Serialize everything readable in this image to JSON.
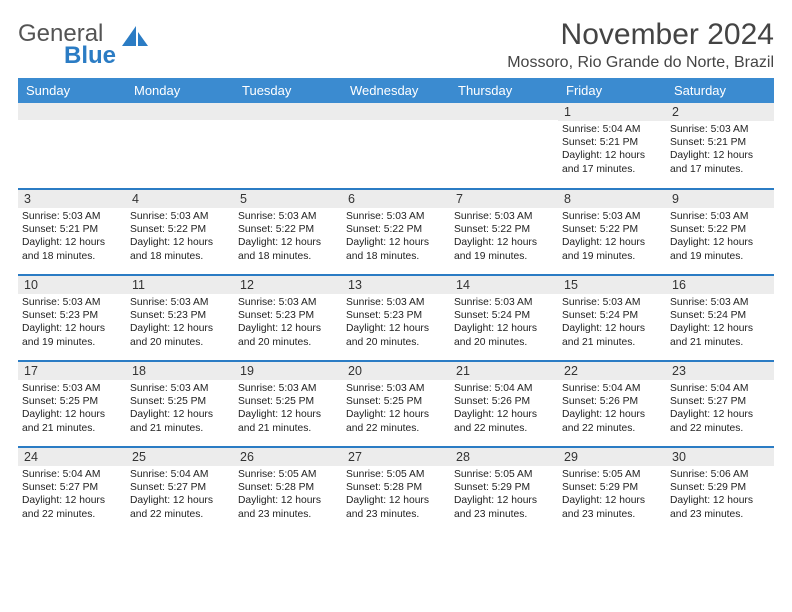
{
  "logo": {
    "word1": "General",
    "word2": "Blue"
  },
  "header": {
    "title": "November 2024",
    "location": "Mossoro, Rio Grande do Norte, Brazil"
  },
  "colors": {
    "header_blue": "#3b8bd0",
    "divider": "#2b7cc4",
    "cell_bg": "#ececec",
    "logo_dark": "#545454",
    "logo_blue": "#2b7cc4",
    "background": "#ffffff",
    "text": "#2b2b2b"
  },
  "calendar": {
    "type": "calendar-table",
    "day_names": [
      "Sunday",
      "Monday",
      "Tuesday",
      "Wednesday",
      "Thursday",
      "Friday",
      "Saturday"
    ],
    "weeks": [
      [
        null,
        null,
        null,
        null,
        null,
        {
          "n": "1",
          "sunrise": "Sunrise: 5:04 AM",
          "sunset": "Sunset: 5:21 PM",
          "day1": "Daylight: 12 hours",
          "day2": "and 17 minutes."
        },
        {
          "n": "2",
          "sunrise": "Sunrise: 5:03 AM",
          "sunset": "Sunset: 5:21 PM",
          "day1": "Daylight: 12 hours",
          "day2": "and 17 minutes."
        }
      ],
      [
        {
          "n": "3",
          "sunrise": "Sunrise: 5:03 AM",
          "sunset": "Sunset: 5:21 PM",
          "day1": "Daylight: 12 hours",
          "day2": "and 18 minutes."
        },
        {
          "n": "4",
          "sunrise": "Sunrise: 5:03 AM",
          "sunset": "Sunset: 5:22 PM",
          "day1": "Daylight: 12 hours",
          "day2": "and 18 minutes."
        },
        {
          "n": "5",
          "sunrise": "Sunrise: 5:03 AM",
          "sunset": "Sunset: 5:22 PM",
          "day1": "Daylight: 12 hours",
          "day2": "and 18 minutes."
        },
        {
          "n": "6",
          "sunrise": "Sunrise: 5:03 AM",
          "sunset": "Sunset: 5:22 PM",
          "day1": "Daylight: 12 hours",
          "day2": "and 18 minutes."
        },
        {
          "n": "7",
          "sunrise": "Sunrise: 5:03 AM",
          "sunset": "Sunset: 5:22 PM",
          "day1": "Daylight: 12 hours",
          "day2": "and 19 minutes."
        },
        {
          "n": "8",
          "sunrise": "Sunrise: 5:03 AM",
          "sunset": "Sunset: 5:22 PM",
          "day1": "Daylight: 12 hours",
          "day2": "and 19 minutes."
        },
        {
          "n": "9",
          "sunrise": "Sunrise: 5:03 AM",
          "sunset": "Sunset: 5:22 PM",
          "day1": "Daylight: 12 hours",
          "day2": "and 19 minutes."
        }
      ],
      [
        {
          "n": "10",
          "sunrise": "Sunrise: 5:03 AM",
          "sunset": "Sunset: 5:23 PM",
          "day1": "Daylight: 12 hours",
          "day2": "and 19 minutes."
        },
        {
          "n": "11",
          "sunrise": "Sunrise: 5:03 AM",
          "sunset": "Sunset: 5:23 PM",
          "day1": "Daylight: 12 hours",
          "day2": "and 20 minutes."
        },
        {
          "n": "12",
          "sunrise": "Sunrise: 5:03 AM",
          "sunset": "Sunset: 5:23 PM",
          "day1": "Daylight: 12 hours",
          "day2": "and 20 minutes."
        },
        {
          "n": "13",
          "sunrise": "Sunrise: 5:03 AM",
          "sunset": "Sunset: 5:23 PM",
          "day1": "Daylight: 12 hours",
          "day2": "and 20 minutes."
        },
        {
          "n": "14",
          "sunrise": "Sunrise: 5:03 AM",
          "sunset": "Sunset: 5:24 PM",
          "day1": "Daylight: 12 hours",
          "day2": "and 20 minutes."
        },
        {
          "n": "15",
          "sunrise": "Sunrise: 5:03 AM",
          "sunset": "Sunset: 5:24 PM",
          "day1": "Daylight: 12 hours",
          "day2": "and 21 minutes."
        },
        {
          "n": "16",
          "sunrise": "Sunrise: 5:03 AM",
          "sunset": "Sunset: 5:24 PM",
          "day1": "Daylight: 12 hours",
          "day2": "and 21 minutes."
        }
      ],
      [
        {
          "n": "17",
          "sunrise": "Sunrise: 5:03 AM",
          "sunset": "Sunset: 5:25 PM",
          "day1": "Daylight: 12 hours",
          "day2": "and 21 minutes."
        },
        {
          "n": "18",
          "sunrise": "Sunrise: 5:03 AM",
          "sunset": "Sunset: 5:25 PM",
          "day1": "Daylight: 12 hours",
          "day2": "and 21 minutes."
        },
        {
          "n": "19",
          "sunrise": "Sunrise: 5:03 AM",
          "sunset": "Sunset: 5:25 PM",
          "day1": "Daylight: 12 hours",
          "day2": "and 21 minutes."
        },
        {
          "n": "20",
          "sunrise": "Sunrise: 5:03 AM",
          "sunset": "Sunset: 5:25 PM",
          "day1": "Daylight: 12 hours",
          "day2": "and 22 minutes."
        },
        {
          "n": "21",
          "sunrise": "Sunrise: 5:04 AM",
          "sunset": "Sunset: 5:26 PM",
          "day1": "Daylight: 12 hours",
          "day2": "and 22 minutes."
        },
        {
          "n": "22",
          "sunrise": "Sunrise: 5:04 AM",
          "sunset": "Sunset: 5:26 PM",
          "day1": "Daylight: 12 hours",
          "day2": "and 22 minutes."
        },
        {
          "n": "23",
          "sunrise": "Sunrise: 5:04 AM",
          "sunset": "Sunset: 5:27 PM",
          "day1": "Daylight: 12 hours",
          "day2": "and 22 minutes."
        }
      ],
      [
        {
          "n": "24",
          "sunrise": "Sunrise: 5:04 AM",
          "sunset": "Sunset: 5:27 PM",
          "day1": "Daylight: 12 hours",
          "day2": "and 22 minutes."
        },
        {
          "n": "25",
          "sunrise": "Sunrise: 5:04 AM",
          "sunset": "Sunset: 5:27 PM",
          "day1": "Daylight: 12 hours",
          "day2": "and 22 minutes."
        },
        {
          "n": "26",
          "sunrise": "Sunrise: 5:05 AM",
          "sunset": "Sunset: 5:28 PM",
          "day1": "Daylight: 12 hours",
          "day2": "and 23 minutes."
        },
        {
          "n": "27",
          "sunrise": "Sunrise: 5:05 AM",
          "sunset": "Sunset: 5:28 PM",
          "day1": "Daylight: 12 hours",
          "day2": "and 23 minutes."
        },
        {
          "n": "28",
          "sunrise": "Sunrise: 5:05 AM",
          "sunset": "Sunset: 5:29 PM",
          "day1": "Daylight: 12 hours",
          "day2": "and 23 minutes."
        },
        {
          "n": "29",
          "sunrise": "Sunrise: 5:05 AM",
          "sunset": "Sunset: 5:29 PM",
          "day1": "Daylight: 12 hours",
          "day2": "and 23 minutes."
        },
        {
          "n": "30",
          "sunrise": "Sunrise: 5:06 AM",
          "sunset": "Sunset: 5:29 PM",
          "day1": "Daylight: 12 hours",
          "day2": "and 23 minutes."
        }
      ]
    ]
  }
}
